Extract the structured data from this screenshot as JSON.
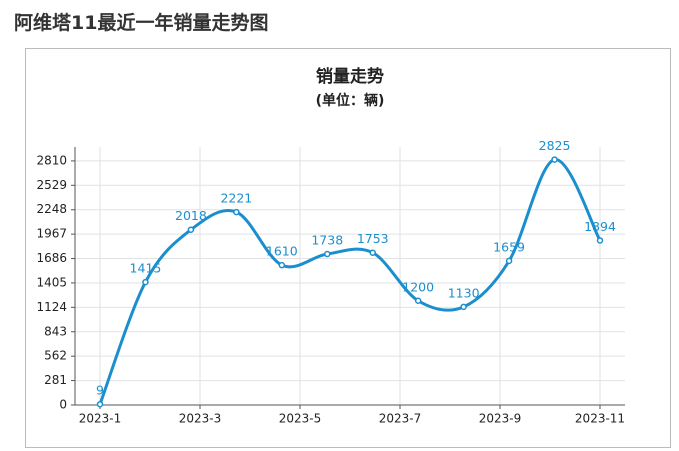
{
  "heading": "阿维塔11最近一年销量走势图",
  "chart_data": {
    "type": "line",
    "title": "销量走势",
    "subtitle": "(单位：辆)",
    "x": [
      0,
      1,
      2,
      3,
      4,
      5,
      6,
      7,
      8,
      9,
      10,
      11
    ],
    "values": [
      9,
      1415,
      2018,
      2221,
      1610,
      1738,
      1753,
      1200,
      1130,
      1659,
      2825,
      1894
    ],
    "color": "#1b8fce",
    "xlim": [
      -0.55,
      11.55
    ],
    "xticks": [
      {
        "value": 0,
        "label": "2023-1"
      },
      {
        "value": 2.2,
        "label": "2023-3"
      },
      {
        "value": 4.4,
        "label": "2023-5"
      },
      {
        "value": 6.6,
        "label": "2023-7"
      },
      {
        "value": 8.8,
        "label": "2023-9"
      },
      {
        "value": 11,
        "label": "2023-11"
      }
    ],
    "ylim": [
      0,
      2970
    ],
    "yticks": [
      0,
      281,
      562,
      843,
      1124,
      1405,
      1686,
      1967,
      2248,
      2529,
      2810
    ],
    "grid": true
  }
}
